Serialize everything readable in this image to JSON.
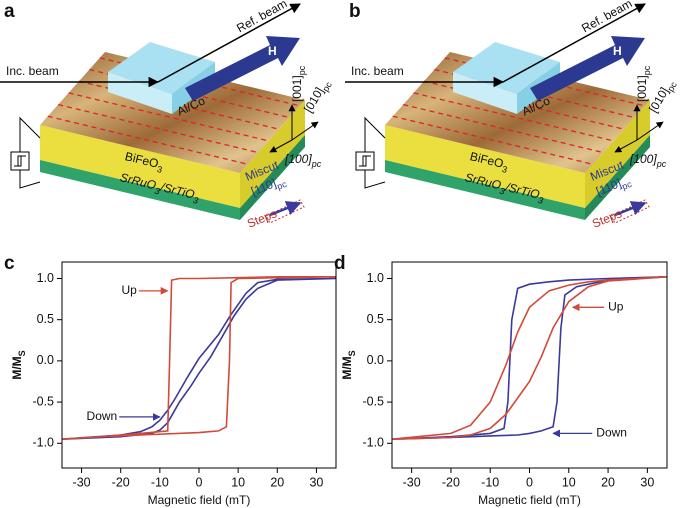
{
  "panels": [
    {
      "label": "a",
      "inc_beam": "Inc. beam",
      "ref_beam": "Ref. beam",
      "field": "H",
      "electrode": "Al/Co",
      "film": {
        "text": "BiFeO",
        "sub": "3"
      },
      "substrate": [
        "SrRuO",
        "3",
        "/SrTiO",
        "3"
      ],
      "axes": [
        {
          "text": "[001]",
          "sub": "pc"
        },
        {
          "text": "[010]",
          "sub": "pc"
        },
        {
          "text": "[100]",
          "sub": "pc"
        }
      ],
      "miscut": {
        "text": "Miscut",
        "direction": "[110]",
        "sub": "pc"
      },
      "steps": "Steps"
    },
    {
      "label": "b",
      "inc_beam": "Inc. beam",
      "ref_beam": "Ref. beam",
      "field": "H",
      "electrode": "Al/Co",
      "film": {
        "text": "BiFeO",
        "sub": "3"
      },
      "substrate": [
        "SrRuO",
        "3",
        "/SrTiO",
        "3"
      ],
      "axes": [
        {
          "text": "[001]",
          "sub": "pc"
        },
        {
          "text": "[010]",
          "sub": "pc"
        },
        {
          "text": "[100]",
          "sub": "pc"
        }
      ],
      "miscut": {
        "text": "Miscut",
        "direction": "[110]",
        "sub": "pc"
      },
      "steps": "Steps"
    }
  ],
  "chart_data": [
    {
      "type": "line",
      "label": "c",
      "xlabel": "Magnetic field (mT)",
      "ylabel": "M/M",
      "ylabel_sub": "S",
      "xlim": [
        -35,
        35
      ],
      "xticks": [
        -30,
        -20,
        -10,
        0,
        10,
        20,
        30
      ],
      "ylim": [
        -1.3,
        1.2
      ],
      "yticks": [
        {
          "value": -1,
          "label": "-1.0"
        },
        -0.5,
        {
          "value": 0,
          "label": "0.0"
        },
        0.5,
        {
          "value": 1,
          "label": "1.0"
        }
      ],
      "series": [
        {
          "color": "#3a3a9c",
          "x": [
            35,
            20,
            15,
            12,
            8,
            5,
            0,
            -3,
            -6,
            -8,
            -10,
            -12,
            -15,
            -20,
            -35,
            -20,
            -12,
            -10,
            -8,
            -5,
            -2,
            0,
            3,
            6,
            9,
            12,
            15,
            20,
            35
          ],
          "values": [
            1.0,
            0.99,
            0.95,
            0.82,
            0.55,
            0.32,
            0.03,
            -0.2,
            -0.45,
            -0.6,
            -0.72,
            -0.8,
            -0.86,
            -0.9,
            -0.95,
            -0.92,
            -0.88,
            -0.84,
            -0.75,
            -0.5,
            -0.3,
            -0.15,
            0.05,
            0.3,
            0.55,
            0.75,
            0.88,
            0.98,
            1.0
          ]
        },
        {
          "color": "#d24a38",
          "x": [
            35,
            20,
            10,
            0,
            -5,
            -7,
            -7.5,
            -8,
            -15,
            -25,
            -35,
            -25,
            -15,
            0,
            5,
            7,
            7.8,
            8.2,
            10,
            20,
            35
          ],
          "values": [
            1.02,
            1.02,
            1.01,
            1.0,
            1.0,
            0.98,
            0.0,
            -0.85,
            -0.88,
            -0.92,
            -0.95,
            -0.92,
            -0.9,
            -0.87,
            -0.85,
            -0.8,
            0.0,
            0.95,
            1.0,
            1.01,
            1.02
          ]
        }
      ],
      "annotations": [
        "Up",
        "Down"
      ]
    },
    {
      "type": "line",
      "label": "d",
      "xlabel": "Magnetic field (mT)",
      "ylabel": "M/M",
      "ylabel_sub": "S",
      "xlim": [
        -35,
        35
      ],
      "xticks": [
        -30,
        -20,
        -10,
        0,
        10,
        20,
        30
      ],
      "ylim": [
        -1.3,
        1.2
      ],
      "yticks": [
        {
          "value": -1,
          "label": "-1.0"
        },
        -0.5,
        {
          "value": 0,
          "label": "0.0"
        },
        0.5,
        {
          "value": 1,
          "label": "1.0"
        }
      ],
      "series": [
        {
          "color": "#3a3a9c",
          "x": [
            35,
            20,
            10,
            5,
            0,
            -3,
            -4.5,
            -5.5,
            -6.5,
            -10,
            -20,
            -35,
            -20,
            -10,
            -3,
            0,
            3,
            6,
            7,
            8,
            9,
            12,
            20,
            35
          ],
          "values": [
            1.02,
            1.0,
            0.98,
            0.96,
            0.93,
            0.88,
            0.5,
            -0.5,
            -0.82,
            -0.88,
            -0.92,
            -0.95,
            -0.93,
            -0.91,
            -0.9,
            -0.88,
            -0.85,
            -0.8,
            -0.5,
            0.4,
            0.8,
            0.9,
            0.98,
            1.02
          ]
        },
        {
          "color": "#d24a38",
          "x": [
            35,
            20,
            15,
            10,
            5,
            0,
            -3,
            -6,
            -10,
            -15,
            -20,
            -35,
            -20,
            -15,
            -10,
            -6,
            -3,
            0,
            3,
            6,
            10,
            15,
            20,
            35
          ],
          "values": [
            1.02,
            0.98,
            0.96,
            0.92,
            0.85,
            0.65,
            0.35,
            -0.05,
            -0.5,
            -0.78,
            -0.88,
            -0.95,
            -0.93,
            -0.9,
            -0.82,
            -0.65,
            -0.45,
            -0.25,
            0.05,
            0.4,
            0.72,
            0.9,
            0.97,
            1.02
          ]
        }
      ],
      "annotations": [
        "Up",
        "Down"
      ]
    }
  ]
}
